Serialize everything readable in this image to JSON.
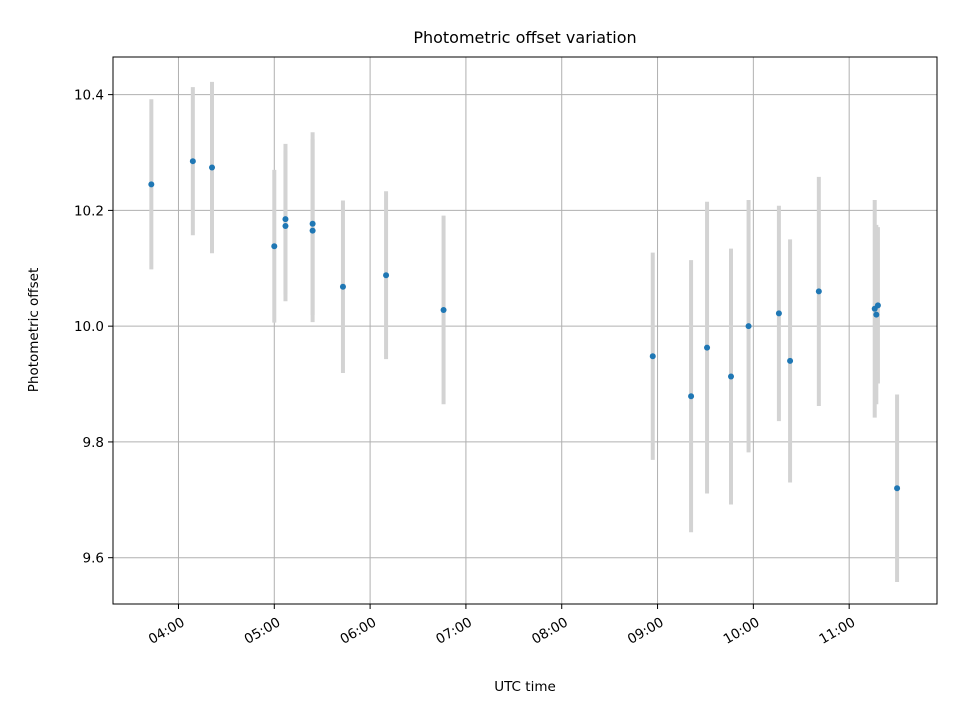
{
  "chart_data": {
    "type": "scatter",
    "title": "Photometric offset variation",
    "xlabel": "UTC time",
    "ylabel": "Photometric offset",
    "xlim": [
      "03:19",
      "11:55"
    ],
    "ylim": [
      9.52,
      10.465
    ],
    "grid": true,
    "legend": "none",
    "x_ticks": [
      "04:00",
      "05:00",
      "06:00",
      "07:00",
      "08:00",
      "09:00",
      "10:00",
      "11:00"
    ],
    "y_ticks": [
      "9.6",
      "9.8",
      "10.0",
      "10.2",
      "10.4"
    ],
    "marker_color": "#1f77b4",
    "errorbar_color": "#d3d3d3",
    "points": [
      {
        "x": "03:43",
        "y": 10.245,
        "err": 0.147
      },
      {
        "x": "04:09",
        "y": 10.285,
        "err": 0.128
      },
      {
        "x": "04:21",
        "y": 10.274,
        "err": 0.148
      },
      {
        "x": "05:00",
        "y": 10.138,
        "err": 0.132
      },
      {
        "x": "05:07",
        "y": 10.185,
        "err": 0.13
      },
      {
        "x": "05:07",
        "y": 10.173,
        "err": 0.13
      },
      {
        "x": "05:24",
        "y": 10.177,
        "err": 0.158
      },
      {
        "x": "05:24",
        "y": 10.165,
        "err": 0.158
      },
      {
        "x": "05:43",
        "y": 10.068,
        "err": 0.149
      },
      {
        "x": "06:10",
        "y": 10.088,
        "err": 0.145
      },
      {
        "x": "06:46",
        "y": 10.028,
        "err": 0.163
      },
      {
        "x": "08:57",
        "y": 9.948,
        "err": 0.179
      },
      {
        "x": "09:21",
        "y": 9.879,
        "err": 0.235
      },
      {
        "x": "09:31",
        "y": 9.963,
        "err": 0.252
      },
      {
        "x": "09:46",
        "y": 9.913,
        "err": 0.221
      },
      {
        "x": "09:57",
        "y": 10.0,
        "err": 0.218
      },
      {
        "x": "10:16",
        "y": 10.022,
        "err": 0.186
      },
      {
        "x": "10:23",
        "y": 9.94,
        "err": 0.21
      },
      {
        "x": "10:41",
        "y": 10.06,
        "err": 0.198
      },
      {
        "x": "11:16",
        "y": 10.03,
        "err": 0.188
      },
      {
        "x": "11:17",
        "y": 10.02,
        "err": 0.155
      },
      {
        "x": "11:18",
        "y": 10.036,
        "err": 0.135
      },
      {
        "x": "11:30",
        "y": 9.72,
        "err": 0.162
      }
    ]
  }
}
